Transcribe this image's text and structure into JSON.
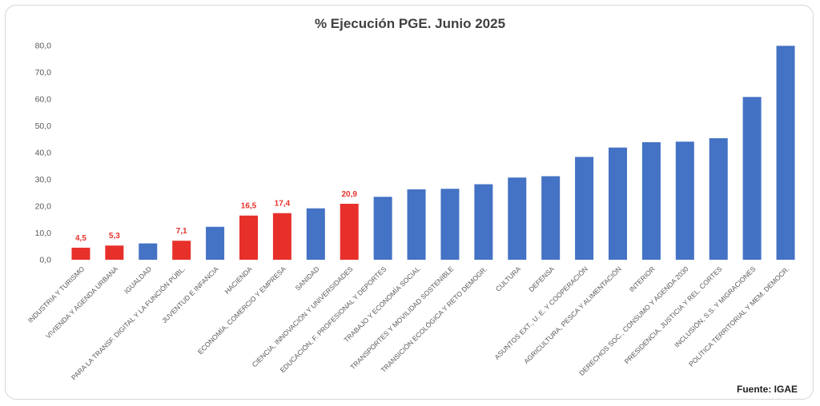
{
  "chart_data": {
    "type": "bar",
    "title": "% Ejecución PGE. Junio 2025",
    "source": "Fuente: IGAE",
    "ylim": [
      0,
      80
    ],
    "yticks": [
      "0,0",
      "10,0",
      "20,0",
      "30,0",
      "40,0",
      "50,0",
      "60,0",
      "70,0",
      "80,0"
    ],
    "grid": false,
    "legend": "none",
    "colors": {
      "default": "#4472c4",
      "highlight": "#e8302a"
    },
    "categories": [
      "INDUSTRIA Y TURISMO",
      "VIVIENDA Y AGENDA URBANA",
      "IGUALDAD",
      "PARA LA TRANSF. DIGITAL Y LA FUNCIÓN PÚBL.",
      "JUVENTUD E INFANCIA",
      "HACIENDA",
      "ECONOMÍA, COMERCIO Y EMPRESA",
      "SANIDAD",
      "CIENCIA, INNOVACIÓN Y UNIVERSIDADES",
      "EDUCACIÓN, F. PROFESIONAL Y DEPORTES",
      "TRABAJO Y ECONOMÍA SOCIAL",
      "TRANSPORTES Y MOVILIDAD SOSTENIBLE",
      "TRANSICIÓN ECOLÓGICA Y RETO DEMOGR.",
      "CULTURA",
      "DEFENSA",
      "ASUNTOS EXT., U. E. Y COOPERACIÓN",
      "AGRICULTURA, PESCA Y ALIMENTACIÓN",
      "INTERIOR",
      "DERECHOS SOC., CONSUMO Y AGENDA 2030",
      "PRESIDENCIA, JUSTICIA Y REL. CORTES",
      "INCLUSIÓN, S.S. Y MIGRACIONES",
      "POLÍTICA TERRITORIAL Y MEM. DEMOCR."
    ],
    "values": [
      4.5,
      5.3,
      6.1,
      7.1,
      12.3,
      16.5,
      17.4,
      19.2,
      20.9,
      23.5,
      26.3,
      26.5,
      28.2,
      30.7,
      31.2,
      38.4,
      41.9,
      43.9,
      44.1,
      45.4,
      60.8,
      79.9
    ],
    "highlighted": [
      true,
      true,
      false,
      true,
      false,
      true,
      true,
      false,
      true,
      false,
      false,
      false,
      false,
      false,
      false,
      false,
      false,
      false,
      false,
      false,
      false,
      false
    ],
    "data_labels": [
      "4,5",
      "5,3",
      "",
      "7,1",
      "",
      "16,5",
      "17,4",
      "",
      "20,9",
      "",
      "",
      "",
      "",
      "",
      "",
      "",
      "",
      "",
      "",
      "",
      "",
      ""
    ]
  }
}
